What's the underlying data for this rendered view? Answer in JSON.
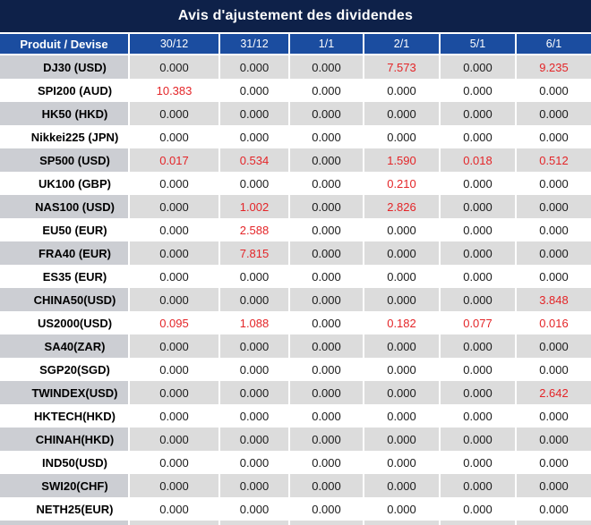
{
  "title": "Avis d'ajustement des dividendes",
  "columns": {
    "product": "Produit / Devise",
    "dates": [
      "30/12",
      "31/12",
      "1/1",
      "2/1",
      "5/1",
      "6/1"
    ]
  },
  "rows": [
    {
      "product": "DJ30 (USD)",
      "values": [
        "0.000",
        "0.000",
        "0.000",
        "7.573",
        "0.000",
        "9.235"
      ],
      "red": [
        3,
        5
      ]
    },
    {
      "product": "SPI200 (AUD)",
      "values": [
        "10.383",
        "0.000",
        "0.000",
        "0.000",
        "0.000",
        "0.000"
      ],
      "red": [
        0
      ]
    },
    {
      "product": "HK50 (HKD)",
      "values": [
        "0.000",
        "0.000",
        "0.000",
        "0.000",
        "0.000",
        "0.000"
      ],
      "red": []
    },
    {
      "product": "Nikkei225 (JPN)",
      "values": [
        "0.000",
        "0.000",
        "0.000",
        "0.000",
        "0.000",
        "0.000"
      ],
      "red": []
    },
    {
      "product": "SP500 (USD)",
      "values": [
        "0.017",
        "0.534",
        "0.000",
        "1.590",
        "0.018",
        "0.512"
      ],
      "red": [
        0,
        1,
        3,
        4,
        5
      ]
    },
    {
      "product": "UK100 (GBP)",
      "values": [
        "0.000",
        "0.000",
        "0.000",
        "0.210",
        "0.000",
        "0.000"
      ],
      "red": [
        3
      ]
    },
    {
      "product": "NAS100 (USD)",
      "values": [
        "0.000",
        "1.002",
        "0.000",
        "2.826",
        "0.000",
        "0.000"
      ],
      "red": [
        1,
        3
      ]
    },
    {
      "product": "EU50 (EUR)",
      "values": [
        "0.000",
        "2.588",
        "0.000",
        "0.000",
        "0.000",
        "0.000"
      ],
      "red": [
        1
      ]
    },
    {
      "product": "FRA40 (EUR)",
      "values": [
        "0.000",
        "7.815",
        "0.000",
        "0.000",
        "0.000",
        "0.000"
      ],
      "red": [
        1
      ]
    },
    {
      "product": "ES35 (EUR)",
      "values": [
        "0.000",
        "0.000",
        "0.000",
        "0.000",
        "0.000",
        "0.000"
      ],
      "red": []
    },
    {
      "product": "CHINA50(USD)",
      "values": [
        "0.000",
        "0.000",
        "0.000",
        "0.000",
        "0.000",
        "3.848"
      ],
      "red": [
        5
      ]
    },
    {
      "product": "US2000(USD)",
      "values": [
        "0.095",
        "1.088",
        "0.000",
        "0.182",
        "0.077",
        "0.016"
      ],
      "red": [
        0,
        1,
        3,
        4,
        5
      ]
    },
    {
      "product": "SA40(ZAR)",
      "values": [
        "0.000",
        "0.000",
        "0.000",
        "0.000",
        "0.000",
        "0.000"
      ],
      "red": []
    },
    {
      "product": "SGP20(SGD)",
      "values": [
        "0.000",
        "0.000",
        "0.000",
        "0.000",
        "0.000",
        "0.000"
      ],
      "red": []
    },
    {
      "product": "TWINDEX(USD)",
      "values": [
        "0.000",
        "0.000",
        "0.000",
        "0.000",
        "0.000",
        "2.642"
      ],
      "red": [
        5
      ]
    },
    {
      "product": "HKTECH(HKD)",
      "values": [
        "0.000",
        "0.000",
        "0.000",
        "0.000",
        "0.000",
        "0.000"
      ],
      "red": []
    },
    {
      "product": "CHINAH(HKD)",
      "values": [
        "0.000",
        "0.000",
        "0.000",
        "0.000",
        "0.000",
        "0.000"
      ],
      "red": []
    },
    {
      "product": "IND50(USD)",
      "values": [
        "0.000",
        "0.000",
        "0.000",
        "0.000",
        "0.000",
        "0.000"
      ],
      "red": []
    },
    {
      "product": "SWI20(CHF)",
      "values": [
        "0.000",
        "0.000",
        "0.000",
        "0.000",
        "0.000",
        "0.000"
      ],
      "red": []
    },
    {
      "product": "NETH25(EUR)",
      "values": [
        "0.000",
        "0.000",
        "0.000",
        "0.000",
        "0.000",
        "0.000"
      ],
      "red": []
    }
  ],
  "colors": {
    "title_bg": "#0e2149",
    "header_bg": "#1b4da0",
    "row_gray": "#dcdcdc",
    "row_gray_product": "#ccced3",
    "row_white": "#ffffff",
    "value_red": "#e42528",
    "value_black": "#1a1a1a"
  }
}
